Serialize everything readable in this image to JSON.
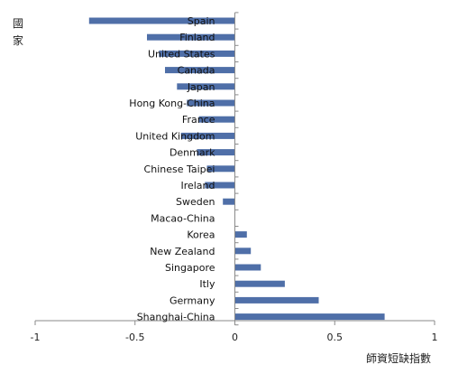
{
  "chart_data": {
    "type": "bar",
    "orientation": "horizontal",
    "title": "",
    "xlabel": "師資短缺指數",
    "ylabel": "國家",
    "xlim": [
      -1,
      1
    ],
    "xticks": [
      -1,
      -0.5,
      0,
      0.5,
      1
    ],
    "xtick_labels": [
      "-1",
      "-0.5",
      "0",
      "0.5",
      "1"
    ],
    "grid": false,
    "legend": "none",
    "bar_color": "#4f6fa8",
    "categories": [
      "Spain",
      "Finland",
      "United States",
      "Canada",
      "Japan",
      "Hong Kong-China",
      "France",
      "United Kingdom",
      "Denmark",
      "Chinese Taipei",
      "Ireland",
      "Sweden",
      "Macao-China",
      "Korea",
      "New Zealand",
      "Singapore",
      "Itly",
      "Germany",
      "Shanghai-China"
    ],
    "values": [
      -0.73,
      -0.44,
      -0.38,
      -0.35,
      -0.29,
      -0.24,
      -0.18,
      -0.27,
      -0.19,
      -0.14,
      -0.15,
      -0.06,
      0.0,
      0.06,
      0.08,
      0.13,
      0.25,
      0.42,
      0.75
    ]
  }
}
